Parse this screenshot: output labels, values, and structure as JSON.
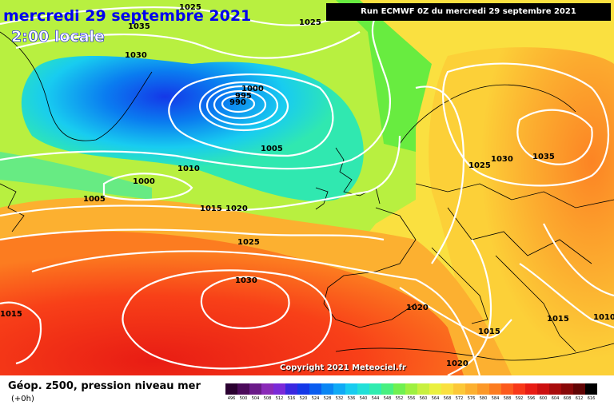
{
  "header": {
    "date_title": "mercredi 29 septembre 2021",
    "time_title": "2:00 locale",
    "run_info": "Run ECMWF 0Z du mercredi 29 septembre 2021"
  },
  "map": {
    "copyright": "Copyright 2021 Meteociel.fr",
    "isobar_labels": [
      "1025",
      "1035",
      "1030",
      "1025",
      "1000",
      "995",
      "990",
      "1005",
      "1010",
      "1000",
      "1005",
      "1015",
      "1020",
      "1025",
      "1025",
      "1030",
      "1035",
      "1030",
      "1015",
      "1020",
      "1015",
      "1015",
      "1010",
      "1020"
    ],
    "colors": {
      "contour": "#ffffff",
      "coastline": "#000000",
      "low_center": "#0044ff",
      "high_center": "#ff2200"
    }
  },
  "legend": {
    "title": "Géop. z500, pression niveau mer",
    "subtitle": "(+0h)",
    "scale_values": [
      "496",
      "500",
      "504",
      "508",
      "512",
      "516",
      "520",
      "524",
      "528",
      "532",
      "536",
      "540",
      "544",
      "548",
      "552",
      "556",
      "560",
      "564",
      "568",
      "572",
      "576",
      "580",
      "584",
      "588",
      "592",
      "596",
      "600",
      "604",
      "608",
      "612",
      "616"
    ],
    "scale_colors": [
      "#2a0030",
      "#4b0a5a",
      "#6a1a88",
      "#8a2ab8",
      "#7a2ad8",
      "#3a28e0",
      "#1438e8",
      "#0a5cf0",
      "#0a86f4",
      "#10aaf6",
      "#18ccf0",
      "#22e0d8",
      "#30ecb0",
      "#48f080",
      "#70f050",
      "#9ef040",
      "#c8f040",
      "#eaf040",
      "#fae040",
      "#fcc838",
      "#fcb030",
      "#fc9828",
      "#fc7c20",
      "#fc5a1c",
      "#f83818",
      "#e81c14",
      "#cc1010",
      "#a80c0c",
      "#880808",
      "#600404",
      "#000000"
    ]
  }
}
